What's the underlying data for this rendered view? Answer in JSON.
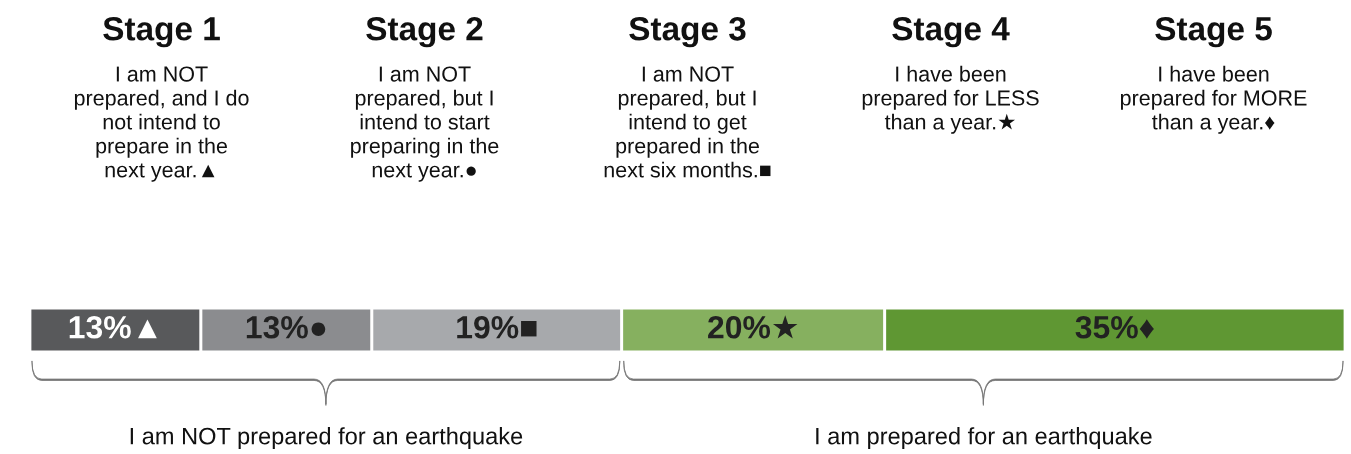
{
  "chart_data": {
    "type": "bar",
    "orientation": "horizontal",
    "stacked": true,
    "categories": [
      null
    ],
    "xlim": [
      0,
      100
    ],
    "legend": false,
    "series": [
      {
        "color": "#58595b",
        "values": [
          13
        ],
        "value_labels": [
          "13%▲"
        ]
      },
      {
        "color": "#8b8c8f",
        "values": [
          13
        ],
        "value_labels": [
          "13%●"
        ]
      },
      {
        "color": "#a7a9ac",
        "values": [
          19
        ],
        "value_labels": [
          "19%■"
        ]
      },
      {
        "color": "#86b05f",
        "values": [
          20
        ],
        "value_labels": [
          "20%★"
        ]
      },
      {
        "color": "#5f9733",
        "values": [
          35
        ],
        "value_labels": [
          "35%♦"
        ]
      }
    ],
    "annotations": [
      "Stage 1",
      "Stage 2",
      "Stage 3",
      "Stage 4",
      "Stage 5",
      "I am NOT\nprepared, and I do\nnot intend to\nprepare in the\nnext year.▲",
      "I am NOT\nprepared, but I\nintend to start\npreparing in the\nnext year.●",
      "I am NOT\nprepared, but I\nintend to get\nprepared in the\nnext six months.■",
      "I have been\nprepared for LESS\nthan a year.★",
      "I have been\nprepared for MORE\nthan a year.♦",
      "I am NOT prepared for an earthquake",
      "I am prepared for an earthquake"
    ]
  }
}
